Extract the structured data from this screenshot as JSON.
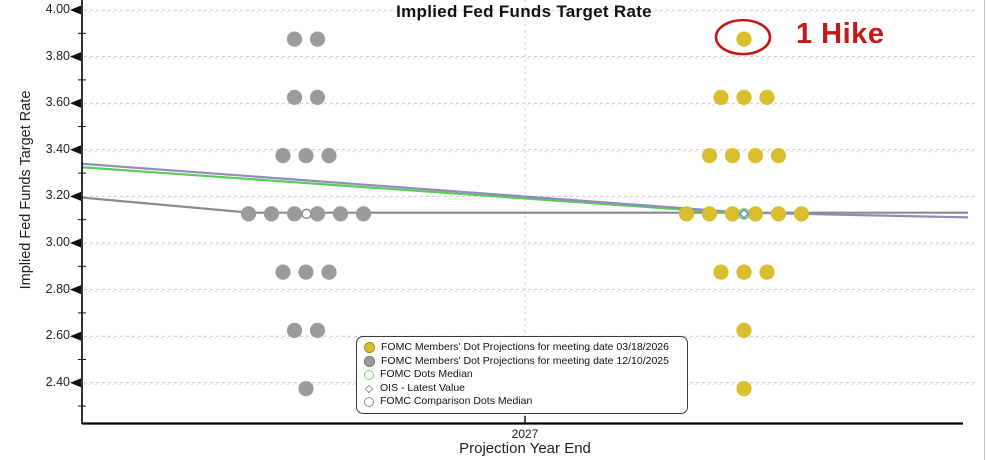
{
  "chart_data": {
    "type": "scatter",
    "title": "Implied Fed Funds Target Rate",
    "xlabel": "Projection Year End",
    "ylabel": "Implied Fed Funds Target Rate",
    "x_tick_labels": [
      "2027"
    ],
    "y_ticks": [
      4.0,
      3.8,
      3.6,
      3.4,
      3.2,
      3.0,
      2.8,
      2.6,
      2.4
    ],
    "ylim": [
      2.3,
      4.0
    ],
    "grid": "dashed horizontal at each y tick, dashed vertical at 2027",
    "dot_series": [
      {
        "name": "FOMC Members' Dot Projections for meeting date 03/18/2026",
        "color": "#d9bf2d",
        "cluster": "right",
        "rows": [
          {
            "rate": 3.875,
            "count": 1
          },
          {
            "rate": 3.625,
            "count": 3
          },
          {
            "rate": 3.375,
            "count": 4
          },
          {
            "rate": 3.125,
            "count": 6
          },
          {
            "rate": 2.875,
            "count": 3
          },
          {
            "rate": 2.625,
            "count": 1
          },
          {
            "rate": 2.375,
            "count": 1
          }
        ]
      },
      {
        "name": "FOMC Members' Dot Projections for meeting date 12/10/2025",
        "color": "#9b9b9b",
        "cluster": "left",
        "rows": [
          {
            "rate": 3.875,
            "count": 2
          },
          {
            "rate": 3.625,
            "count": 2
          },
          {
            "rate": 3.375,
            "count": 3
          },
          {
            "rate": 3.125,
            "count": 6
          },
          {
            "rate": 2.875,
            "count": 3
          },
          {
            "rate": 2.625,
            "count": 2
          },
          {
            "rate": 2.375,
            "count": 1
          }
        ]
      }
    ],
    "lines": [
      {
        "name": "FOMC Comparison Dots Median path",
        "color": "#8a8a8a",
        "points": [
          {
            "x": "left",
            "rate": 3.195
          },
          {
            "x": "prev_dots",
            "rate": 3.13
          },
          {
            "x": "right",
            "rate": 3.13
          }
        ]
      },
      {
        "name": "FOMC Dots Median path",
        "color": "#58cc58",
        "points": [
          {
            "x": "left",
            "rate": 3.325
          },
          {
            "x": "dots",
            "rate": 3.125
          }
        ]
      },
      {
        "name": "OIS curve",
        "color": "#938abb",
        "points": [
          {
            "x": "left",
            "rate": 3.34
          },
          {
            "x": "dots",
            "rate": 3.13
          },
          {
            "x": "right",
            "rate": 3.11
          }
        ]
      }
    ],
    "medians": {
      "fomc_dots_median": 3.125,
      "ois_latest_value": 3.125,
      "fomc_comparison_dots_median": 3.125
    },
    "annotation": {
      "label": "1 Hike",
      "color": "#c41717",
      "circled_series": "FOMC Members' Dot Projections for meeting date 03/18/2026",
      "circled_rate": 3.875
    },
    "legend": {
      "position": "bottom-center",
      "entries": [
        {
          "label": "FOMC Members' Dot Projections for meeting date 03/18/2026",
          "marker": "filled-circle",
          "color": "#d9bf2d"
        },
        {
          "label": "FOMC Members' Dot Projections for meeting date 12/10/2025",
          "marker": "filled-circle",
          "color": "#9b9b9b"
        },
        {
          "label": "FOMC Dots Median",
          "marker": "open-circle",
          "color": "#6fd66f"
        },
        {
          "label": "OIS - Latest Value",
          "marker": "open-diamond",
          "color": "#9b8fc4"
        },
        {
          "label": "FOMC Comparison Dots Median",
          "marker": "open-circle",
          "color": "#8a8a8a"
        }
      ]
    },
    "colors": {
      "grid": "#c9c9c9",
      "axis": "#000000",
      "background": "#ffffff"
    }
  }
}
